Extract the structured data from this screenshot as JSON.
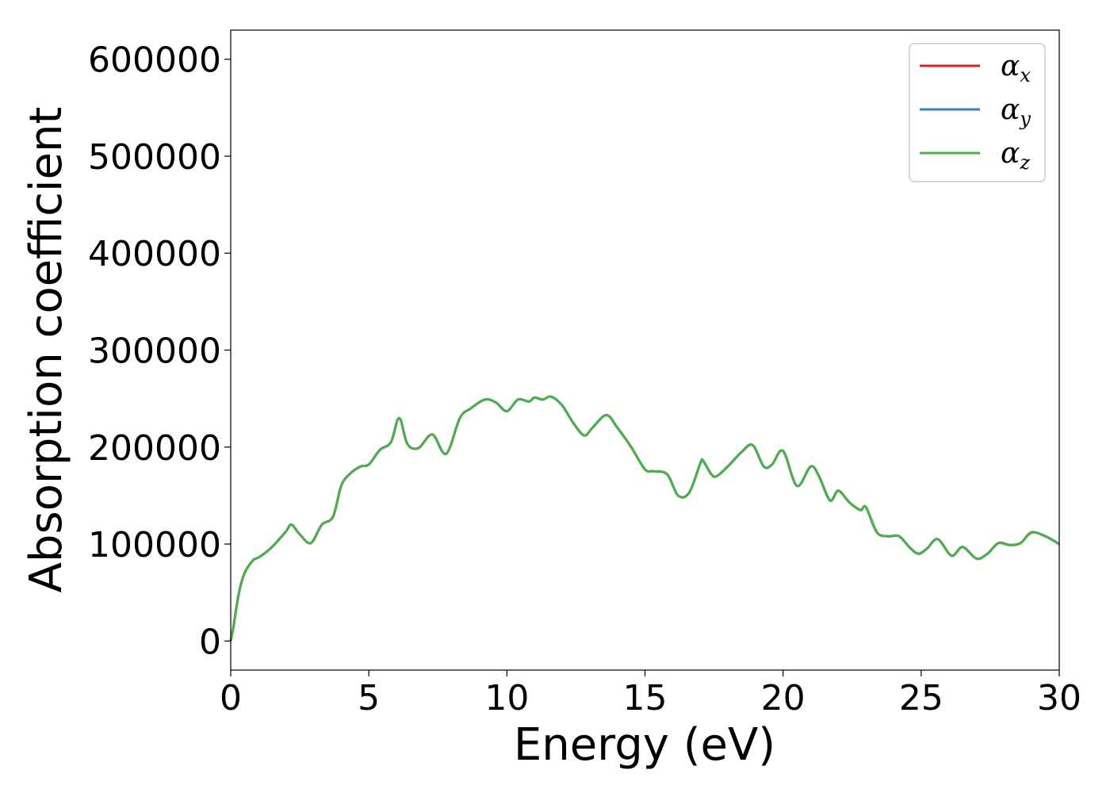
{
  "chart_data": {
    "type": "line",
    "xlabel": "Energy (eV)",
    "ylabel": "Absorption coefficient",
    "xlim": [
      0,
      30
    ],
    "ylim": [
      -30000,
      630000
    ],
    "xticks": [
      0,
      5,
      10,
      15,
      20,
      25,
      30
    ],
    "yticks": [
      0,
      100000,
      200000,
      300000,
      400000,
      500000,
      600000
    ],
    "xtick_labels": [
      "0",
      "5",
      "10",
      "15",
      "20",
      "25",
      "30"
    ],
    "ytick_labels": [
      "0",
      "100000",
      "200000",
      "300000",
      "400000",
      "500000",
      "600000"
    ],
    "grid": false,
    "legend_position": "top-right",
    "x": [
      0,
      0.1,
      0.3,
      0.5,
      0.8,
      1.0,
      1.3,
      1.6,
      2.0,
      2.2,
      2.5,
      2.9,
      3.3,
      3.7,
      4.0,
      4.3,
      4.7,
      5.0,
      5.4,
      5.8,
      6.1,
      6.4,
      6.8,
      7.3,
      7.8,
      8.3,
      8.7,
      9.2,
      9.6,
      10.0,
      10.4,
      10.8,
      11.0,
      11.3,
      11.6,
      12.0,
      12.4,
      12.8,
      13.1,
      13.6,
      14.0,
      14.5,
      15.0,
      15.3,
      15.8,
      16.2,
      16.6,
      17.0,
      17.1,
      17.4,
      17.6,
      18.0,
      18.5,
      18.9,
      19.3,
      19.6,
      20.0,
      20.5,
      21.0,
      21.3,
      21.7,
      22.0,
      22.4,
      22.8,
      23.0,
      23.4,
      23.8,
      24.2,
      24.6,
      24.9,
      25.2,
      25.6,
      26.1,
      26.5,
      27.0,
      27.4,
      27.8,
      28.2,
      28.6,
      29.0,
      29.5,
      30.0
    ],
    "series": [
      {
        "name": "αx",
        "color": "#e41a1c",
        "values": [
          0,
          15000,
          50000,
          70000,
          83000,
          86000,
          92000,
          100000,
          113000,
          120000,
          110000,
          101000,
          120000,
          128000,
          160000,
          172000,
          180000,
          182000,
          197000,
          205000,
          230000,
          203000,
          199000,
          213000,
          193000,
          230000,
          240000,
          249000,
          246000,
          237000,
          249000,
          247000,
          251000,
          249000,
          252000,
          243000,
          225000,
          212000,
          220000,
          233000,
          220000,
          200000,
          177000,
          175000,
          172000,
          150000,
          153000,
          183000,
          186000,
          172000,
          170000,
          180000,
          195000,
          202000,
          180000,
          182000,
          196000,
          160000,
          180000,
          170000,
          145000,
          155000,
          143000,
          135000,
          138000,
          112000,
          108000,
          108000,
          96000,
          90000,
          95000,
          105000,
          88000,
          97000,
          85000,
          90000,
          101000,
          99000,
          101000,
          112000,
          108000,
          100000
        ]
      },
      {
        "name": "αy",
        "color": "#377eb8",
        "values": [
          0,
          15000,
          50000,
          70000,
          83000,
          86000,
          92000,
          100000,
          113000,
          120000,
          110000,
          101000,
          120000,
          128000,
          160000,
          172000,
          180000,
          182000,
          197000,
          205000,
          230000,
          203000,
          199000,
          213000,
          193000,
          230000,
          240000,
          249000,
          246000,
          237000,
          249000,
          247000,
          251000,
          249000,
          252000,
          243000,
          225000,
          212000,
          220000,
          233000,
          220000,
          200000,
          177000,
          175000,
          172000,
          150000,
          153000,
          183000,
          186000,
          172000,
          170000,
          180000,
          195000,
          202000,
          180000,
          182000,
          196000,
          160000,
          180000,
          170000,
          145000,
          155000,
          143000,
          135000,
          138000,
          112000,
          108000,
          108000,
          96000,
          90000,
          95000,
          105000,
          88000,
          97000,
          85000,
          90000,
          101000,
          99000,
          101000,
          112000,
          108000,
          100000
        ]
      },
      {
        "name": "αz",
        "color": "#4daf4a",
        "values": [
          0,
          15000,
          50000,
          70000,
          83000,
          86000,
          92000,
          100000,
          113000,
          120000,
          110000,
          101000,
          120000,
          128000,
          160000,
          172000,
          180000,
          182000,
          197000,
          205000,
          230000,
          203000,
          199000,
          213000,
          193000,
          230000,
          240000,
          249000,
          246000,
          237000,
          249000,
          247000,
          251000,
          249000,
          252000,
          243000,
          225000,
          212000,
          220000,
          233000,
          220000,
          200000,
          177000,
          175000,
          172000,
          150000,
          153000,
          183000,
          186000,
          172000,
          170000,
          180000,
          195000,
          202000,
          180000,
          182000,
          196000,
          160000,
          180000,
          170000,
          145000,
          155000,
          143000,
          135000,
          138000,
          112000,
          108000,
          108000,
          96000,
          90000,
          95000,
          105000,
          88000,
          97000,
          85000,
          90000,
          101000,
          99000,
          101000,
          112000,
          108000,
          100000
        ]
      }
    ],
    "legend": [
      {
        "symbol": "α",
        "sub": "x",
        "color": "#e41a1c"
      },
      {
        "symbol": "α",
        "sub": "y",
        "color": "#377eb8"
      },
      {
        "symbol": "α",
        "sub": "z",
        "color": "#4daf4a"
      }
    ]
  }
}
